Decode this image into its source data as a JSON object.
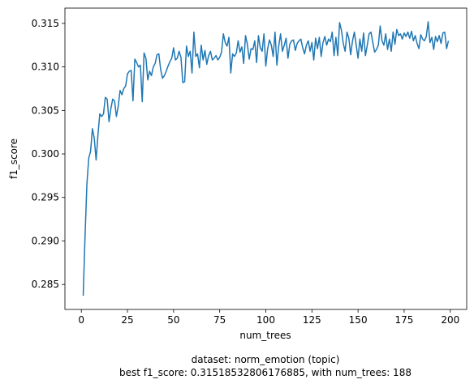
{
  "chart_data": {
    "type": "line",
    "xlabel": "num_trees",
    "ylabel": "f1_score",
    "annotations": [
      "dataset: norm_emotion (topic)",
      "best f1_score: 0.31518532806176885, with num_trees: 188"
    ],
    "x": [
      1,
      2,
      3,
      4,
      5,
      6,
      7,
      8,
      9,
      10,
      11,
      12,
      13,
      14,
      15,
      16,
      17,
      18,
      19,
      20,
      21,
      22,
      23,
      24,
      25,
      26,
      27,
      28,
      29,
      30,
      31,
      32,
      33,
      34,
      35,
      36,
      37,
      38,
      39,
      40,
      41,
      42,
      43,
      44,
      45,
      46,
      47,
      48,
      49,
      50,
      51,
      52,
      53,
      54,
      55,
      56,
      57,
      58,
      59,
      60,
      61,
      62,
      63,
      64,
      65,
      66,
      67,
      68,
      69,
      70,
      71,
      72,
      73,
      74,
      75,
      76,
      77,
      78,
      79,
      80,
      81,
      82,
      83,
      84,
      85,
      86,
      87,
      88,
      89,
      90,
      91,
      92,
      93,
      94,
      95,
      96,
      97,
      98,
      99,
      100,
      101,
      102,
      103,
      104,
      105,
      106,
      107,
      108,
      109,
      110,
      111,
      112,
      113,
      114,
      115,
      116,
      117,
      118,
      119,
      120,
      121,
      122,
      123,
      124,
      125,
      126,
      127,
      128,
      129,
      130,
      131,
      132,
      133,
      134,
      135,
      136,
      137,
      138,
      139,
      140,
      141,
      142,
      143,
      144,
      145,
      146,
      147,
      148,
      149,
      150,
      151,
      152,
      153,
      154,
      155,
      156,
      157,
      158,
      159,
      160,
      161,
      162,
      163,
      164,
      165,
      166,
      167,
      168,
      169,
      170,
      171,
      172,
      173,
      174,
      175,
      176,
      177,
      178,
      179,
      180,
      181,
      182,
      183,
      184,
      185,
      186,
      187,
      188,
      189,
      190,
      191,
      192,
      193,
      194,
      195,
      196,
      197,
      198,
      199
    ],
    "series": [
      {
        "color": "#1f77b4",
        "values": [
          0.2837,
          0.2905,
          0.2965,
          0.2995,
          0.3003,
          0.3029,
          0.3018,
          0.2993,
          0.3022,
          0.3046,
          0.3043,
          0.3046,
          0.3065,
          0.3063,
          0.3037,
          0.3052,
          0.3063,
          0.3061,
          0.3043,
          0.3055,
          0.3073,
          0.3068,
          0.3075,
          0.3078,
          0.3092,
          0.3095,
          0.3096,
          0.3061,
          0.3109,
          0.3105,
          0.31,
          0.3102,
          0.306,
          0.3116,
          0.311,
          0.3085,
          0.3095,
          0.309,
          0.31,
          0.3104,
          0.3114,
          0.3115,
          0.3097,
          0.3087,
          0.309,
          0.3095,
          0.3101,
          0.3106,
          0.311,
          0.3122,
          0.3108,
          0.311,
          0.3118,
          0.3111,
          0.3082,
          0.3083,
          0.3124,
          0.3112,
          0.3118,
          0.3093,
          0.314,
          0.3112,
          0.3115,
          0.3099,
          0.3125,
          0.3108,
          0.3119,
          0.3103,
          0.3113,
          0.3118,
          0.3108,
          0.311,
          0.3113,
          0.3108,
          0.3111,
          0.3117,
          0.3138,
          0.3128,
          0.3124,
          0.3134,
          0.3093,
          0.3115,
          0.3112,
          0.3116,
          0.313,
          0.3117,
          0.3123,
          0.3104,
          0.3136,
          0.3126,
          0.3109,
          0.3121,
          0.312,
          0.313,
          0.3105,
          0.3136,
          0.3122,
          0.3118,
          0.3138,
          0.3101,
          0.3121,
          0.3131,
          0.3125,
          0.3112,
          0.314,
          0.3102,
          0.3124,
          0.3138,
          0.3118,
          0.3125,
          0.3133,
          0.311,
          0.3126,
          0.313,
          0.3131,
          0.3119,
          0.3127,
          0.313,
          0.3132,
          0.3122,
          0.3115,
          0.3125,
          0.313,
          0.3118,
          0.3128,
          0.3108,
          0.3133,
          0.3121,
          0.3134,
          0.3112,
          0.3128,
          0.3135,
          0.3125,
          0.3132,
          0.3129,
          0.314,
          0.3113,
          0.3134,
          0.3113,
          0.3151,
          0.3142,
          0.3127,
          0.3118,
          0.314,
          0.3133,
          0.3114,
          0.313,
          0.314,
          0.3125,
          0.311,
          0.3132,
          0.3118,
          0.3139,
          0.3113,
          0.3125,
          0.3138,
          0.314,
          0.3128,
          0.3117,
          0.312,
          0.3125,
          0.3147,
          0.313,
          0.3125,
          0.3138,
          0.312,
          0.3132,
          0.3118,
          0.314,
          0.3126,
          0.3143,
          0.3136,
          0.3138,
          0.3132,
          0.3139,
          0.3135,
          0.314,
          0.3133,
          0.3141,
          0.313,
          0.3136,
          0.3127,
          0.3121,
          0.3137,
          0.3132,
          0.313,
          0.3135,
          0.31518532806176885,
          0.3128,
          0.3134,
          0.312,
          0.3135,
          0.3129,
          0.3136,
          0.3127,
          0.3139,
          0.314,
          0.3121,
          0.313
        ]
      }
    ],
    "xlim": [
      -8.9,
      208.9
    ],
    "xticks": [
      0,
      25,
      50,
      75,
      100,
      125,
      150,
      175,
      200
    ],
    "ylim": [
      0.28213,
      0.31676
    ],
    "yticks": [
      {
        "value": 0.285,
        "label": "0.285"
      },
      {
        "value": 0.29,
        "label": "0.290"
      },
      {
        "value": 0.295,
        "label": "0.295"
      },
      {
        "value": 0.3,
        "label": "0.300"
      },
      {
        "value": 0.305,
        "label": "0.305"
      },
      {
        "value": 0.31,
        "label": "0.310"
      },
      {
        "value": 0.315,
        "label": "0.315"
      }
    ],
    "grid": false
  }
}
